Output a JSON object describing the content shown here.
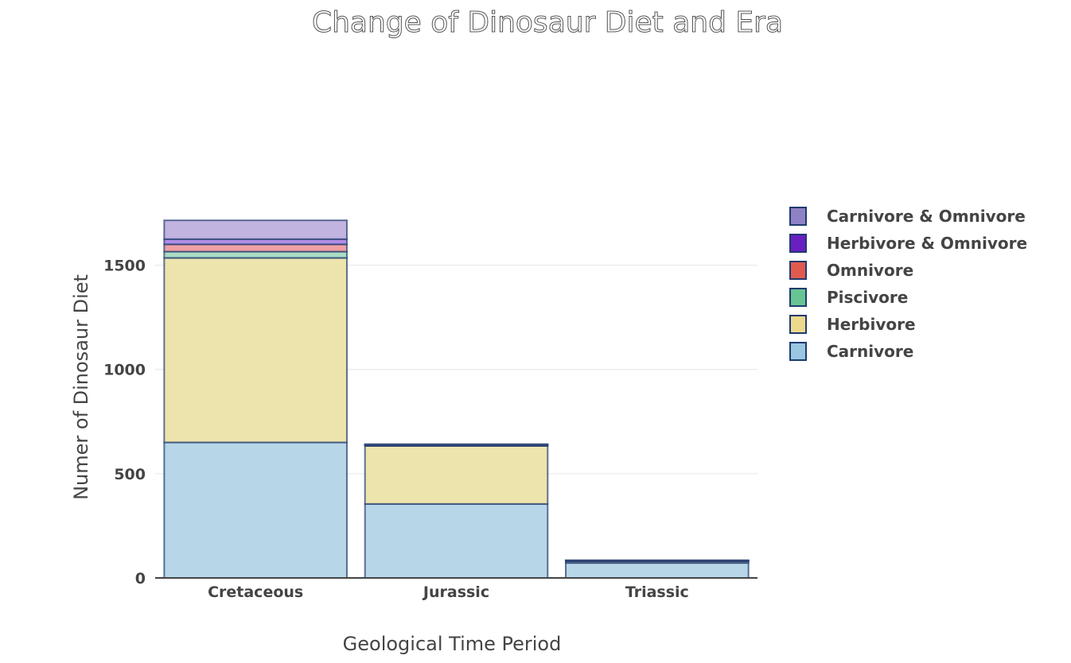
{
  "chart_data": {
    "type": "bar",
    "barmode": "stack",
    "title": "Change of Dinosaur Diet and Era",
    "xlabel": "Geological Time Period",
    "ylabel": "Numer of Dinosaur  Diet",
    "categories": [
      "Cretaceous",
      "Jurassic",
      "Triassic"
    ],
    "ylim": [
      0,
      1750
    ],
    "yticks": [
      0,
      500,
      1000,
      1500
    ],
    "grid": true,
    "legend_position": "right",
    "series": [
      {
        "name": "Carnivore",
        "values": [
          650,
          355,
          72
        ],
        "color": "#b7d6e8"
      },
      {
        "name": "Herbivore",
        "values": [
          885,
          278,
          8
        ],
        "color": "#ede3ad"
      },
      {
        "name": "Piscivore",
        "values": [
          30,
          2,
          1
        ],
        "color": "#a9dcc4"
      },
      {
        "name": "Omnivore",
        "values": [
          35,
          3,
          2
        ],
        "color": "#f0a0a4"
      },
      {
        "name": "Herbivore & Omnivore",
        "values": [
          25,
          2,
          1
        ],
        "color": "#b08ee6"
      },
      {
        "name": "Carnivore & Omnivore",
        "values": [
          90,
          2,
          1
        ],
        "color": "#c2b4e0"
      }
    ],
    "legend_swatch_colors": {
      "Carnivore & Omnivore": "#8f82c4",
      "Herbivore & Omnivore": "#6a1fc0",
      "Omnivore": "#e05a4e",
      "Piscivore": "#68c491",
      "Herbivore": "#ecd98c",
      "Carnivore": "#9ac6e0"
    },
    "bar_edge_color": "#1f3a6e"
  }
}
